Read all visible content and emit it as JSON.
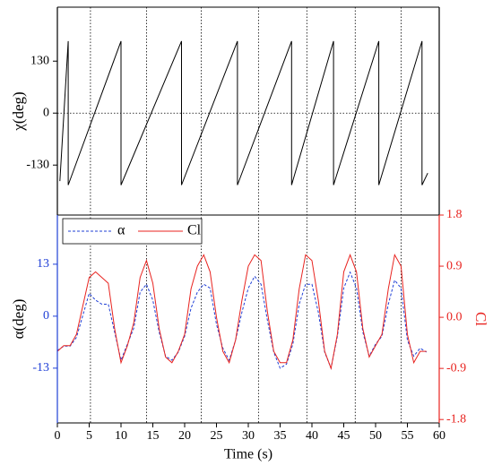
{
  "chart_data": [
    {
      "type": "line",
      "ylabel": "χ(deg)",
      "xlim": [
        0,
        60
      ],
      "ylim": [
        -255,
        265
      ],
      "yticks": [
        130,
        0,
        -130
      ],
      "hlines": [
        0
      ],
      "x": [
        0.4,
        1.7,
        1.7,
        10.0,
        10.0,
        19.5,
        19.5,
        28.3,
        28.3,
        36.8,
        36.8,
        43.4,
        43.4,
        50.5,
        50.5,
        57.3,
        57.3,
        58.2
      ],
      "series": [
        {
          "name": "χ",
          "color": "#000000",
          "values": [
            -170,
            180,
            -180,
            180,
            -180,
            180,
            -180,
            180,
            -180,
            180,
            -180,
            180,
            -180,
            180,
            -180,
            180,
            -180,
            -150
          ]
        }
      ]
    },
    {
      "type": "line",
      "xlabel": "Time (s)",
      "ylabel": "α(deg)",
      "y2label": "Cl",
      "xlim": [
        0,
        60
      ],
      "xticks": [
        0,
        5,
        10,
        15,
        20,
        25,
        30,
        35,
        40,
        45,
        50,
        55,
        60
      ],
      "ylim": [
        -26.7,
        25.3
      ],
      "yticks": [
        13,
        0,
        -13
      ],
      "y2lim": [
        -1.86,
        1.8
      ],
      "y2ticks": [
        1.8,
        0.9,
        {
          "value": 0,
          "label": "0.0"
        },
        -0.9,
        -1.8
      ],
      "vlines": [
        5.2,
        14.0,
        22.6,
        31.6,
        39.2,
        46.8,
        54.0
      ],
      "legend": "upper left",
      "x": [
        0,
        1,
        2,
        3,
        4,
        5,
        6,
        7,
        8,
        9,
        10,
        11,
        12,
        13,
        14,
        15,
        16,
        17,
        18,
        19,
        20,
        21,
        22,
        23,
        24,
        25,
        26,
        27,
        28,
        29,
        30,
        31,
        32,
        33,
        34,
        35,
        36,
        37,
        38,
        39,
        40,
        41,
        42,
        43,
        44,
        45,
        46,
        47,
        48,
        49,
        50,
        51,
        52,
        53,
        54,
        55,
        56,
        57,
        58
      ],
      "series": [
        {
          "name": "α",
          "color": "#1f3fd6",
          "dash": true,
          "values": [
            -8.6,
            -7.5,
            -7.5,
            -5.3,
            0.2,
            5.7,
            4,
            3,
            3,
            -4,
            -11,
            -7,
            -3,
            6,
            8,
            4,
            -4,
            -10,
            -11,
            -9,
            -5,
            2,
            6,
            8,
            7,
            -2,
            -8,
            -11,
            -6,
            1,
            7,
            10,
            8,
            -1,
            -9,
            -13,
            -12,
            -7,
            3,
            8,
            8,
            1,
            -9,
            -13,
            -5,
            7,
            11,
            7,
            -4,
            -10,
            -7,
            -5,
            3,
            9,
            7,
            -6,
            -10,
            -8,
            -9
          ]
        },
        {
          "name": "Cl",
          "color": "#e8231f",
          "axis": "y2",
          "values": [
            -0.6,
            -0.5,
            -0.5,
            -0.3,
            0.2,
            0.7,
            0.8,
            0.7,
            0.6,
            -0.2,
            -0.8,
            -0.5,
            -0.1,
            0.7,
            1.0,
            0.6,
            -0.2,
            -0.7,
            -0.8,
            -0.6,
            -0.3,
            0.5,
            0.9,
            1.1,
            0.8,
            0.0,
            -0.6,
            -0.8,
            -0.4,
            0.3,
            0.9,
            1.1,
            1.0,
            0.1,
            -0.6,
            -0.8,
            -0.8,
            -0.4,
            0.5,
            1.1,
            1.0,
            0.3,
            -0.6,
            -0.9,
            -0.3,
            0.8,
            1.1,
            0.8,
            -0.2,
            -0.7,
            -0.5,
            -0.3,
            0.5,
            1.1,
            0.9,
            -0.3,
            -0.8,
            -0.6,
            -0.6
          ]
        }
      ]
    }
  ]
}
